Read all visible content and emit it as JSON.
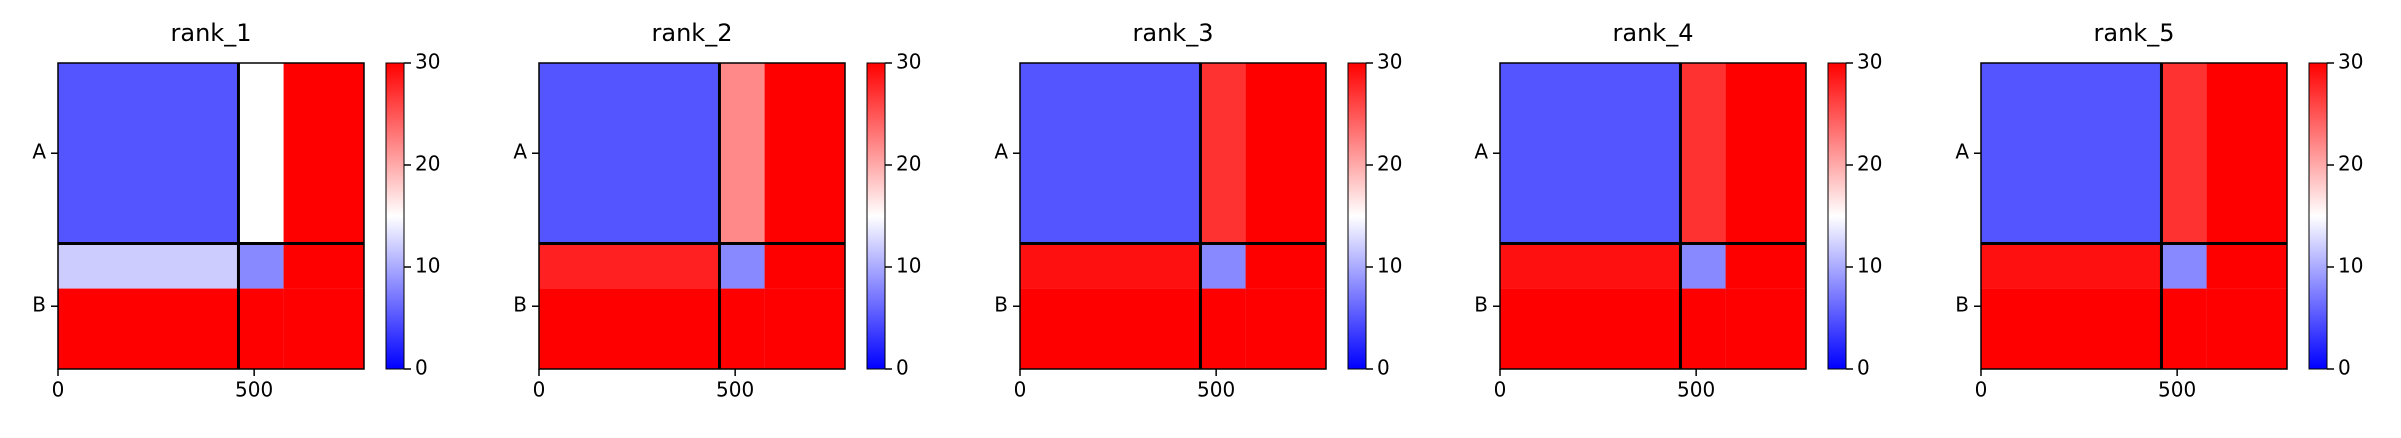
{
  "chart_data": [
    {
      "type": "heatmap",
      "title": "rank_1",
      "colormap": "bwr",
      "edges": [
        0,
        460,
        575,
        780
      ],
      "values": [
        [
          5,
          15,
          30
        ],
        [
          12,
          8,
          30
        ],
        [
          30,
          30,
          30
        ]
      ],
      "xlim": [
        0,
        780
      ],
      "ylim": [
        0,
        780
      ],
      "y_inverted": true,
      "xticks": [
        0,
        500
      ],
      "yticks": [
        {
          "value": 230,
          "label": "A"
        },
        {
          "value": 620,
          "label": "B"
        }
      ],
      "clim": [
        0,
        30
      ],
      "cticks": [
        0,
        10,
        20,
        30
      ],
      "chain_breaks": [
        460
      ],
      "break_color": "#000000"
    },
    {
      "type": "heatmap",
      "title": "rank_2",
      "colormap": "bwr",
      "edges": [
        0,
        460,
        575,
        780
      ],
      "values": [
        [
          5,
          22,
          30
        ],
        [
          28,
          8,
          30
        ],
        [
          30,
          30,
          30
        ]
      ],
      "xlim": [
        0,
        780
      ],
      "ylim": [
        0,
        780
      ],
      "y_inverted": true,
      "xticks": [
        0,
        500
      ],
      "yticks": [
        {
          "value": 230,
          "label": "A"
        },
        {
          "value": 620,
          "label": "B"
        }
      ],
      "clim": [
        0,
        30
      ],
      "cticks": [
        0,
        10,
        20,
        30
      ],
      "chain_breaks": [
        460
      ],
      "break_color": "#000000"
    },
    {
      "type": "heatmap",
      "title": "rank_3",
      "colormap": "bwr",
      "edges": [
        0,
        460,
        575,
        780
      ],
      "values": [
        [
          5,
          27,
          30
        ],
        [
          29,
          8,
          30
        ],
        [
          30,
          30,
          30
        ]
      ],
      "xlim": [
        0,
        780
      ],
      "ylim": [
        0,
        780
      ],
      "y_inverted": true,
      "xticks": [
        0,
        500
      ],
      "yticks": [
        {
          "value": 230,
          "label": "A"
        },
        {
          "value": 620,
          "label": "B"
        }
      ],
      "clim": [
        0,
        30
      ],
      "cticks": [
        0,
        10,
        20,
        30
      ],
      "chain_breaks": [
        460
      ],
      "break_color": "#000000"
    },
    {
      "type": "heatmap",
      "title": "rank_4",
      "colormap": "bwr",
      "edges": [
        0,
        460,
        575,
        780
      ],
      "values": [
        [
          5,
          27,
          30
        ],
        [
          29,
          8,
          30
        ],
        [
          30,
          30,
          30
        ]
      ],
      "xlim": [
        0,
        780
      ],
      "ylim": [
        0,
        780
      ],
      "y_inverted": true,
      "xticks": [
        0,
        500
      ],
      "yticks": [
        {
          "value": 230,
          "label": "A"
        },
        {
          "value": 620,
          "label": "B"
        }
      ],
      "clim": [
        0,
        30
      ],
      "cticks": [
        0,
        10,
        20,
        30
      ],
      "chain_breaks": [
        460
      ],
      "break_color": "#000000"
    },
    {
      "type": "heatmap",
      "title": "rank_5",
      "colormap": "bwr",
      "edges": [
        0,
        460,
        575,
        780
      ],
      "values": [
        [
          5,
          27,
          30
        ],
        [
          29,
          8,
          30
        ],
        [
          30,
          30,
          30
        ]
      ],
      "xlim": [
        0,
        780
      ],
      "ylim": [
        0,
        780
      ],
      "y_inverted": true,
      "xticks": [
        0,
        500
      ],
      "yticks": [
        {
          "value": 230,
          "label": "A"
        },
        {
          "value": 620,
          "label": "B"
        }
      ],
      "clim": [
        0,
        30
      ],
      "cticks": [
        0,
        10,
        20,
        30
      ],
      "chain_breaks": [
        460
      ],
      "break_color": "#000000"
    }
  ]
}
